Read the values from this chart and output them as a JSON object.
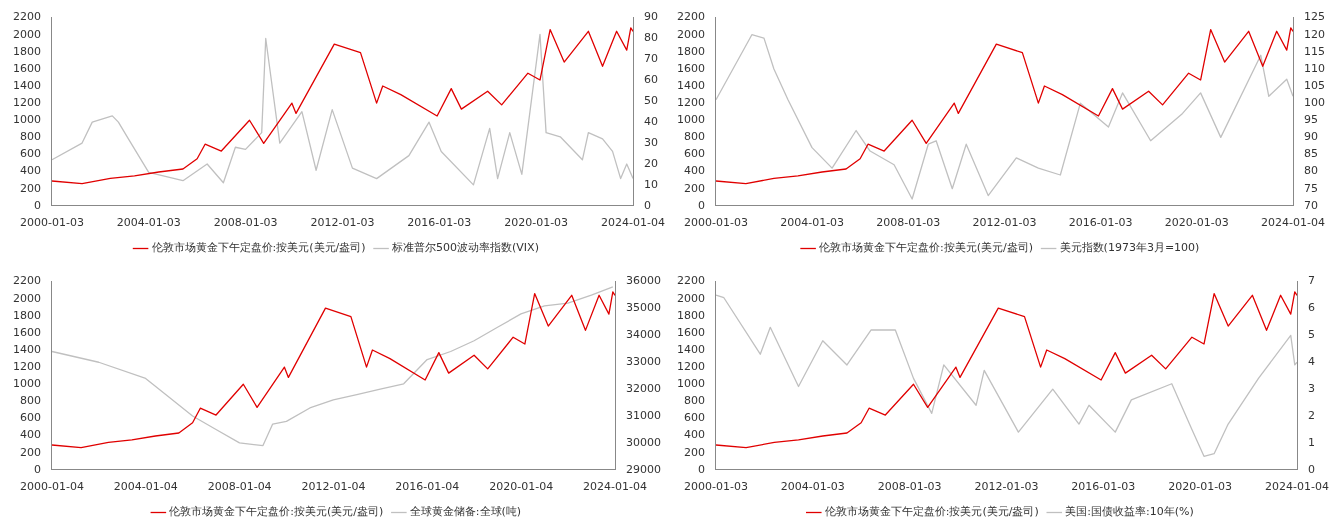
{
  "chart_data": [
    {
      "type": "line",
      "xlim": [
        "2000-01-03",
        "2024-01-04"
      ],
      "xticks": [
        "2000-01-03",
        "2004-01-03",
        "2008-01-03",
        "2012-01-03",
        "2016-01-03",
        "2020-01-03",
        "2024-01-04"
      ],
      "ylim": [
        0,
        2200
      ],
      "yticks": [
        0,
        200,
        400,
        600,
        800,
        1000,
        1200,
        1400,
        1600,
        1800,
        2000,
        2200
      ],
      "y2lim": [
        0,
        90
      ],
      "y2ticks": [
        0,
        10,
        20,
        30,
        40,
        50,
        60,
        70,
        80,
        90
      ],
      "legend": "bottom",
      "marker": "none",
      "series": [
        {
          "name": "伦敦市场黄金下午定盘价:按美元(美元/盎司)",
          "color": "#e00000",
          "x": [
            "2000-01-03",
            "2001-04",
            "2002-06",
            "2003-06",
            "2004-06",
            "2005-06",
            "2006-01",
            "2006-05",
            "2007-01",
            "2008-03",
            "2008-10",
            "2009-12",
            "2010-02",
            "2011-09",
            "2012-10",
            "2013-06",
            "2013-09",
            "2014-06",
            "2015-12",
            "2016-07",
            "2016-12",
            "2018-01",
            "2018-08",
            "2019-09",
            "2020-03",
            "2020-08",
            "2021-03",
            "2022-03",
            "2022-10",
            "2023-05",
            "2023-10",
            "2023-12",
            "2024-01-04"
          ],
          "values": [
            290,
            260,
            320,
            350,
            395,
            430,
            550,
            720,
            640,
            1000,
            730,
            1200,
            1080,
            1890,
            1790,
            1200,
            1400,
            1300,
            1050,
            1370,
            1130,
            1340,
            1180,
            1550,
            1470,
            2060,
            1680,
            2040,
            1630,
            2040,
            1820,
            2080,
            2040
          ]
        },
        {
          "name": "标准普尔500波动率指数(VIX)",
          "color": "#c0c0c0",
          "axis": "y2",
          "x": [
            "2000-01-03",
            "2001-04",
            "2001-09",
            "2002-07",
            "2002-10",
            "2003-03",
            "2004-01",
            "2005-06",
            "2006-06",
            "2007-02",
            "2007-08",
            "2008-01",
            "2008-09",
            "2008-11",
            "2009-06",
            "2010-05",
            "2010-12",
            "2011-08",
            "2012-06",
            "2013-06",
            "2014-10",
            "2015-08",
            "2016-02",
            "2017-06",
            "2018-02",
            "2018-06",
            "2018-12",
            "2019-06",
            "2020-03",
            "2020-06",
            "2021-01",
            "2021-12",
            "2022-03",
            "2022-10",
            "2023-03",
            "2023-07",
            "2023-10",
            "2024-01-04"
          ],
          "values": [
            22,
            30,
            40,
            43,
            40,
            32,
            16,
            12,
            20,
            11,
            28,
            27,
            35,
            80,
            30,
            45,
            17,
            46,
            18,
            13,
            24,
            40,
            26,
            10,
            37,
            13,
            35,
            15,
            82,
            35,
            33,
            22,
            35,
            32,
            26,
            13,
            20,
            13
          ]
        }
      ]
    },
    {
      "type": "line",
      "xlim": [
        "2000-01-03",
        "2024-01-04"
      ],
      "xticks": [
        "2000-01-03",
        "2004-01-03",
        "2008-01-03",
        "2012-01-03",
        "2016-01-03",
        "2020-01-03",
        "2024-01-04"
      ],
      "ylim": [
        0,
        2200
      ],
      "yticks": [
        0,
        200,
        400,
        600,
        800,
        1000,
        1200,
        1400,
        1600,
        1800,
        2000,
        2200
      ],
      "y2lim": [
        70,
        125
      ],
      "y2ticks": [
        70,
        75,
        80,
        85,
        90,
        95,
        100,
        105,
        110,
        115,
        120,
        125
      ],
      "legend": "bottom",
      "marker": "none",
      "series": [
        {
          "name": "伦敦市场黄金下午定盘价:按美元(美元/盎司)",
          "color": "#e00000",
          "x": [
            "2000-01-03",
            "2001-04",
            "2002-06",
            "2003-06",
            "2004-06",
            "2005-06",
            "2006-01",
            "2006-05",
            "2007-01",
            "2008-03",
            "2008-10",
            "2009-12",
            "2010-02",
            "2011-09",
            "2012-10",
            "2013-06",
            "2013-09",
            "2014-06",
            "2015-12",
            "2016-07",
            "2016-12",
            "2018-01",
            "2018-08",
            "2019-09",
            "2020-03",
            "2020-08",
            "2021-03",
            "2022-03",
            "2022-10",
            "2023-05",
            "2023-10",
            "2023-12",
            "2024-01-04"
          ],
          "values": [
            290,
            260,
            320,
            350,
            395,
            430,
            550,
            720,
            640,
            1000,
            730,
            1200,
            1080,
            1890,
            1790,
            1200,
            1400,
            1300,
            1050,
            1370,
            1130,
            1340,
            1180,
            1550,
            1470,
            2060,
            1680,
            2040,
            1630,
            2040,
            1820,
            2080,
            2040
          ]
        },
        {
          "name": "美元指数(1973年3月=100)",
          "color": "#c0c0c0",
          "axis": "y2",
          "x": [
            "2000-01-03",
            "2001-07",
            "2002-01",
            "2002-06",
            "2003-01",
            "2004-01",
            "2004-11",
            "2005-11",
            "2006-06",
            "2007-06",
            "2008-03",
            "2008-11",
            "2009-03",
            "2009-11",
            "2010-06",
            "2011-05",
            "2012-07",
            "2013-06",
            "2014-05",
            "2015-03",
            "2016-05",
            "2016-12",
            "2018-02",
            "2019-06",
            "2020-03",
            "2021-01",
            "2022-09",
            "2023-01",
            "2023-10",
            "2024-01-04"
          ],
          "values": [
            101,
            120,
            119,
            110,
            101,
            87,
            81,
            92,
            86,
            82,
            72,
            88,
            89,
            75,
            88,
            73,
            84,
            81,
            79,
            100,
            93,
            103,
            89,
            97,
            103,
            90,
            114,
            102,
            107,
            102
          ]
        }
      ]
    },
    {
      "type": "line",
      "xlim": [
        "2000-01-04",
        "2024-01-04"
      ],
      "xticks": [
        "2000-01-04",
        "2004-01-04",
        "2008-01-04",
        "2012-01-04",
        "2016-01-04",
        "2020-01-04",
        "2024-01-04"
      ],
      "ylim": [
        0,
        2200
      ],
      "yticks": [
        0,
        200,
        400,
        600,
        800,
        1000,
        1200,
        1400,
        1600,
        1800,
        2000,
        2200
      ],
      "y2lim": [
        29000,
        36000
      ],
      "y2ticks": [
        29000,
        30000,
        31000,
        32000,
        33000,
        34000,
        35000,
        36000
      ],
      "legend": "bottom",
      "marker": "none",
      "series": [
        {
          "name": "伦敦市场黄金下午定盘价:按美元(美元/盎司)",
          "color": "#e00000",
          "x": [
            "2000-01-04",
            "2001-04",
            "2002-06",
            "2003-06",
            "2004-06",
            "2005-06",
            "2006-01",
            "2006-05",
            "2007-01",
            "2008-03",
            "2008-10",
            "2009-12",
            "2010-02",
            "2011-09",
            "2012-10",
            "2013-06",
            "2013-09",
            "2014-06",
            "2015-12",
            "2016-07",
            "2016-12",
            "2018-01",
            "2018-08",
            "2019-09",
            "2020-03",
            "2020-08",
            "2021-03",
            "2022-03",
            "2022-10",
            "2023-05",
            "2023-10",
            "2023-12",
            "2024-01-04"
          ],
          "values": [
            290,
            260,
            320,
            350,
            395,
            430,
            550,
            720,
            640,
            1000,
            730,
            1200,
            1080,
            1890,
            1790,
            1200,
            1400,
            1300,
            1050,
            1370,
            1130,
            1340,
            1180,
            1550,
            1470,
            2060,
            1680,
            2040,
            1630,
            2040,
            1820,
            2080,
            2040
          ]
        },
        {
          "name": "全球黄金储备:全球(吨)",
          "color": "#c0c0c0",
          "axis": "y2",
          "x": [
            "2000-01-04",
            "2002-01",
            "2004-01",
            "2005-01",
            "2006-01",
            "2007-01",
            "2008-01",
            "2009-01",
            "2009-06",
            "2010-01",
            "2011-01",
            "2012-01",
            "2013-01",
            "2014-01",
            "2015-01",
            "2016-01",
            "2017-01",
            "2018-01",
            "2019-01",
            "2020-01",
            "2021-01",
            "2022-01",
            "2023-01",
            "2023-12"
          ],
          "values": [
            33400,
            33000,
            32400,
            31700,
            31000,
            30500,
            30000,
            29900,
            30700,
            30800,
            31300,
            31600,
            31800,
            32000,
            32200,
            33100,
            33400,
            33800,
            34300,
            34800,
            35100,
            35200,
            35500,
            35800
          ]
        }
      ]
    },
    {
      "type": "line",
      "xlim": [
        "2000-01-03",
        "2024-01-04"
      ],
      "xticks": [
        "2000-01-03",
        "2004-01-03",
        "2008-01-03",
        "2012-01-03",
        "2016-01-03",
        "2020-01-03",
        "2024-01-04"
      ],
      "ylim": [
        0,
        2200
      ],
      "yticks": [
        0,
        200,
        400,
        600,
        800,
        1000,
        1200,
        1400,
        1600,
        1800,
        2000,
        2200
      ],
      "y2lim": [
        0,
        7
      ],
      "y2ticks": [
        0,
        1,
        2,
        3,
        4,
        5,
        6,
        7
      ],
      "legend": "bottom",
      "marker": "none",
      "series": [
        {
          "name": "伦敦市场黄金下午定盘价:按美元(美元/盎司)",
          "color": "#e00000",
          "x": [
            "2000-01-03",
            "2001-04",
            "2002-06",
            "2003-06",
            "2004-06",
            "2005-06",
            "2006-01",
            "2006-05",
            "2007-01",
            "2008-03",
            "2008-10",
            "2009-12",
            "2010-02",
            "2011-09",
            "2012-10",
            "2013-06",
            "2013-09",
            "2014-06",
            "2015-12",
            "2016-07",
            "2016-12",
            "2018-01",
            "2018-08",
            "2019-09",
            "2020-03",
            "2020-08",
            "2021-03",
            "2022-03",
            "2022-10",
            "2023-05",
            "2023-10",
            "2023-12",
            "2024-01-04"
          ],
          "values": [
            290,
            260,
            320,
            350,
            395,
            430,
            550,
            720,
            640,
            1000,
            730,
            1200,
            1080,
            1890,
            1790,
            1200,
            1400,
            1300,
            1050,
            1370,
            1130,
            1340,
            1180,
            1550,
            1470,
            2060,
            1680,
            2040,
            1630,
            2040,
            1820,
            2080,
            2040
          ]
        },
        {
          "name": "美国:国债收益率:10年(%)",
          "color": "#c0c0c0",
          "axis": "y2",
          "x": [
            "2000-01-03",
            "2000-05",
            "2001-11",
            "2002-04",
            "2003-06",
            "2004-06",
            "2005-06",
            "2006-06",
            "2007-06",
            "2008-03",
            "2008-12",
            "2009-06",
            "2010-10",
            "2011-02",
            "2012-07",
            "2013-12",
            "2015-01",
            "2015-06",
            "2016-07",
            "2017-03",
            "2018-11",
            "2019-09",
            "2020-03",
            "2020-08",
            "2021-03",
            "2022-06",
            "2023-10",
            "2023-12",
            "2024-01-04"
          ],
          "values": [
            6.5,
            6.4,
            4.3,
            5.3,
            3.1,
            4.8,
            3.9,
            5.2,
            5.2,
            3.4,
            2.1,
            3.9,
            2.4,
            3.7,
            1.4,
            3.0,
            1.7,
            2.4,
            1.4,
            2.6,
            3.2,
            1.5,
            0.5,
            0.6,
            1.7,
            3.4,
            5.0,
            3.9,
            4.0
          ]
        }
      ]
    }
  ]
}
